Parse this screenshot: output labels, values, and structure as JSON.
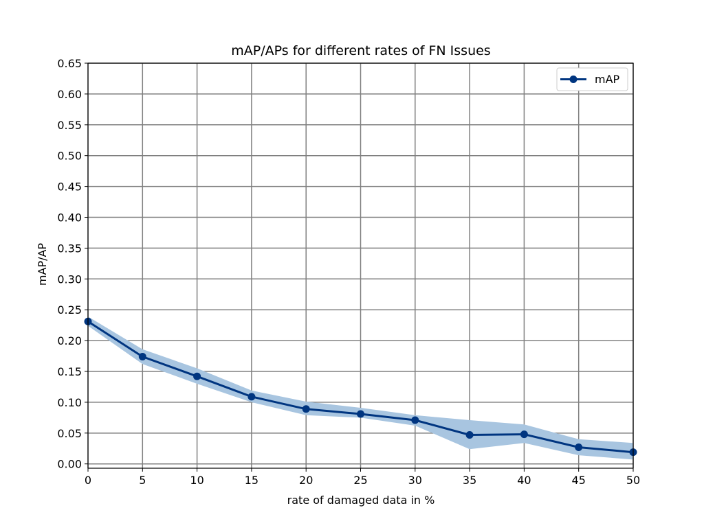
{
  "chart_data": {
    "type": "line",
    "title": "mAP/APs for different rates of FN Issues",
    "xlabel": "rate of damaged data in %",
    "ylabel": "mAP/AP",
    "x": [
      0,
      5,
      10,
      15,
      20,
      25,
      30,
      35,
      40,
      45,
      50
    ],
    "xlim": [
      0,
      50
    ],
    "ylim": [
      -0.007,
      0.65
    ],
    "xticks": [
      0,
      5,
      10,
      15,
      20,
      25,
      30,
      35,
      40,
      45,
      50
    ],
    "yticks": [
      0.0,
      0.05,
      0.1,
      0.15,
      0.2,
      0.25,
      0.3,
      0.35,
      0.4,
      0.45,
      0.5,
      0.55,
      0.6,
      0.65
    ],
    "xtick_labels": [
      "0",
      "5",
      "10",
      "15",
      "20",
      "25",
      "30",
      "35",
      "40",
      "45",
      "50"
    ],
    "ytick_labels": [
      "0.00",
      "0.05",
      "0.10",
      "0.15",
      "0.20",
      "0.25",
      "0.30",
      "0.35",
      "0.40",
      "0.45",
      "0.50",
      "0.55",
      "0.60",
      "0.65"
    ],
    "grid": true,
    "legend_position": "top-right",
    "series": [
      {
        "name": "mAP",
        "color": "#003580",
        "band_color": "#a8c5e0",
        "values": [
          0.231,
          0.174,
          0.142,
          0.109,
          0.089,
          0.081,
          0.071,
          0.047,
          0.048,
          0.027,
          0.019
        ],
        "lower": [
          0.224,
          0.162,
          0.13,
          0.1,
          0.079,
          0.075,
          0.062,
          0.024,
          0.034,
          0.014,
          0.007
        ],
        "upper": [
          0.239,
          0.186,
          0.155,
          0.119,
          0.101,
          0.091,
          0.079,
          0.071,
          0.064,
          0.04,
          0.034
        ]
      }
    ]
  }
}
